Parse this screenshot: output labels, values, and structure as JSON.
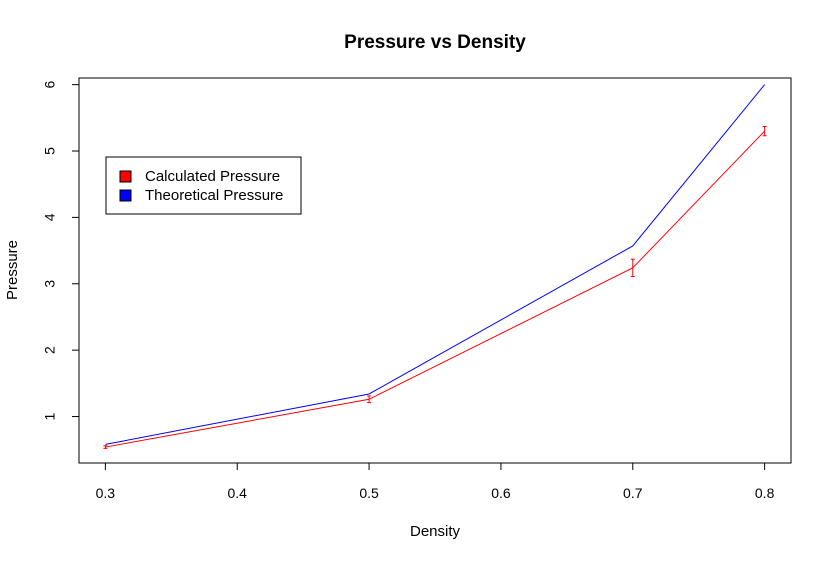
{
  "chart_data": {
    "type": "line",
    "title": "Pressure vs Density",
    "xlabel": "Density",
    "ylabel": "Pressure",
    "xlim": [
      0.28,
      0.82
    ],
    "ylim": [
      0.3,
      6.1
    ],
    "x_ticks": [
      "0.3",
      "0.4",
      "0.5",
      "0.6",
      "0.7",
      "0.8"
    ],
    "y_ticks": [
      "1",
      "2",
      "3",
      "4",
      "5",
      "6"
    ],
    "grid": false,
    "legend_position": "top-left",
    "x": [
      0.3,
      0.5,
      0.7,
      0.8
    ],
    "series": [
      {
        "name": "Calculated Pressure",
        "color": "#ff0000",
        "values": [
          0.54,
          1.26,
          3.24,
          5.3
        ],
        "error": [
          0.02,
          0.05,
          0.13,
          0.07
        ]
      },
      {
        "name": "Theoretical Pressure",
        "color": "#0000ff",
        "values": [
          0.58,
          1.34,
          3.57,
          6.0
        ]
      }
    ]
  }
}
